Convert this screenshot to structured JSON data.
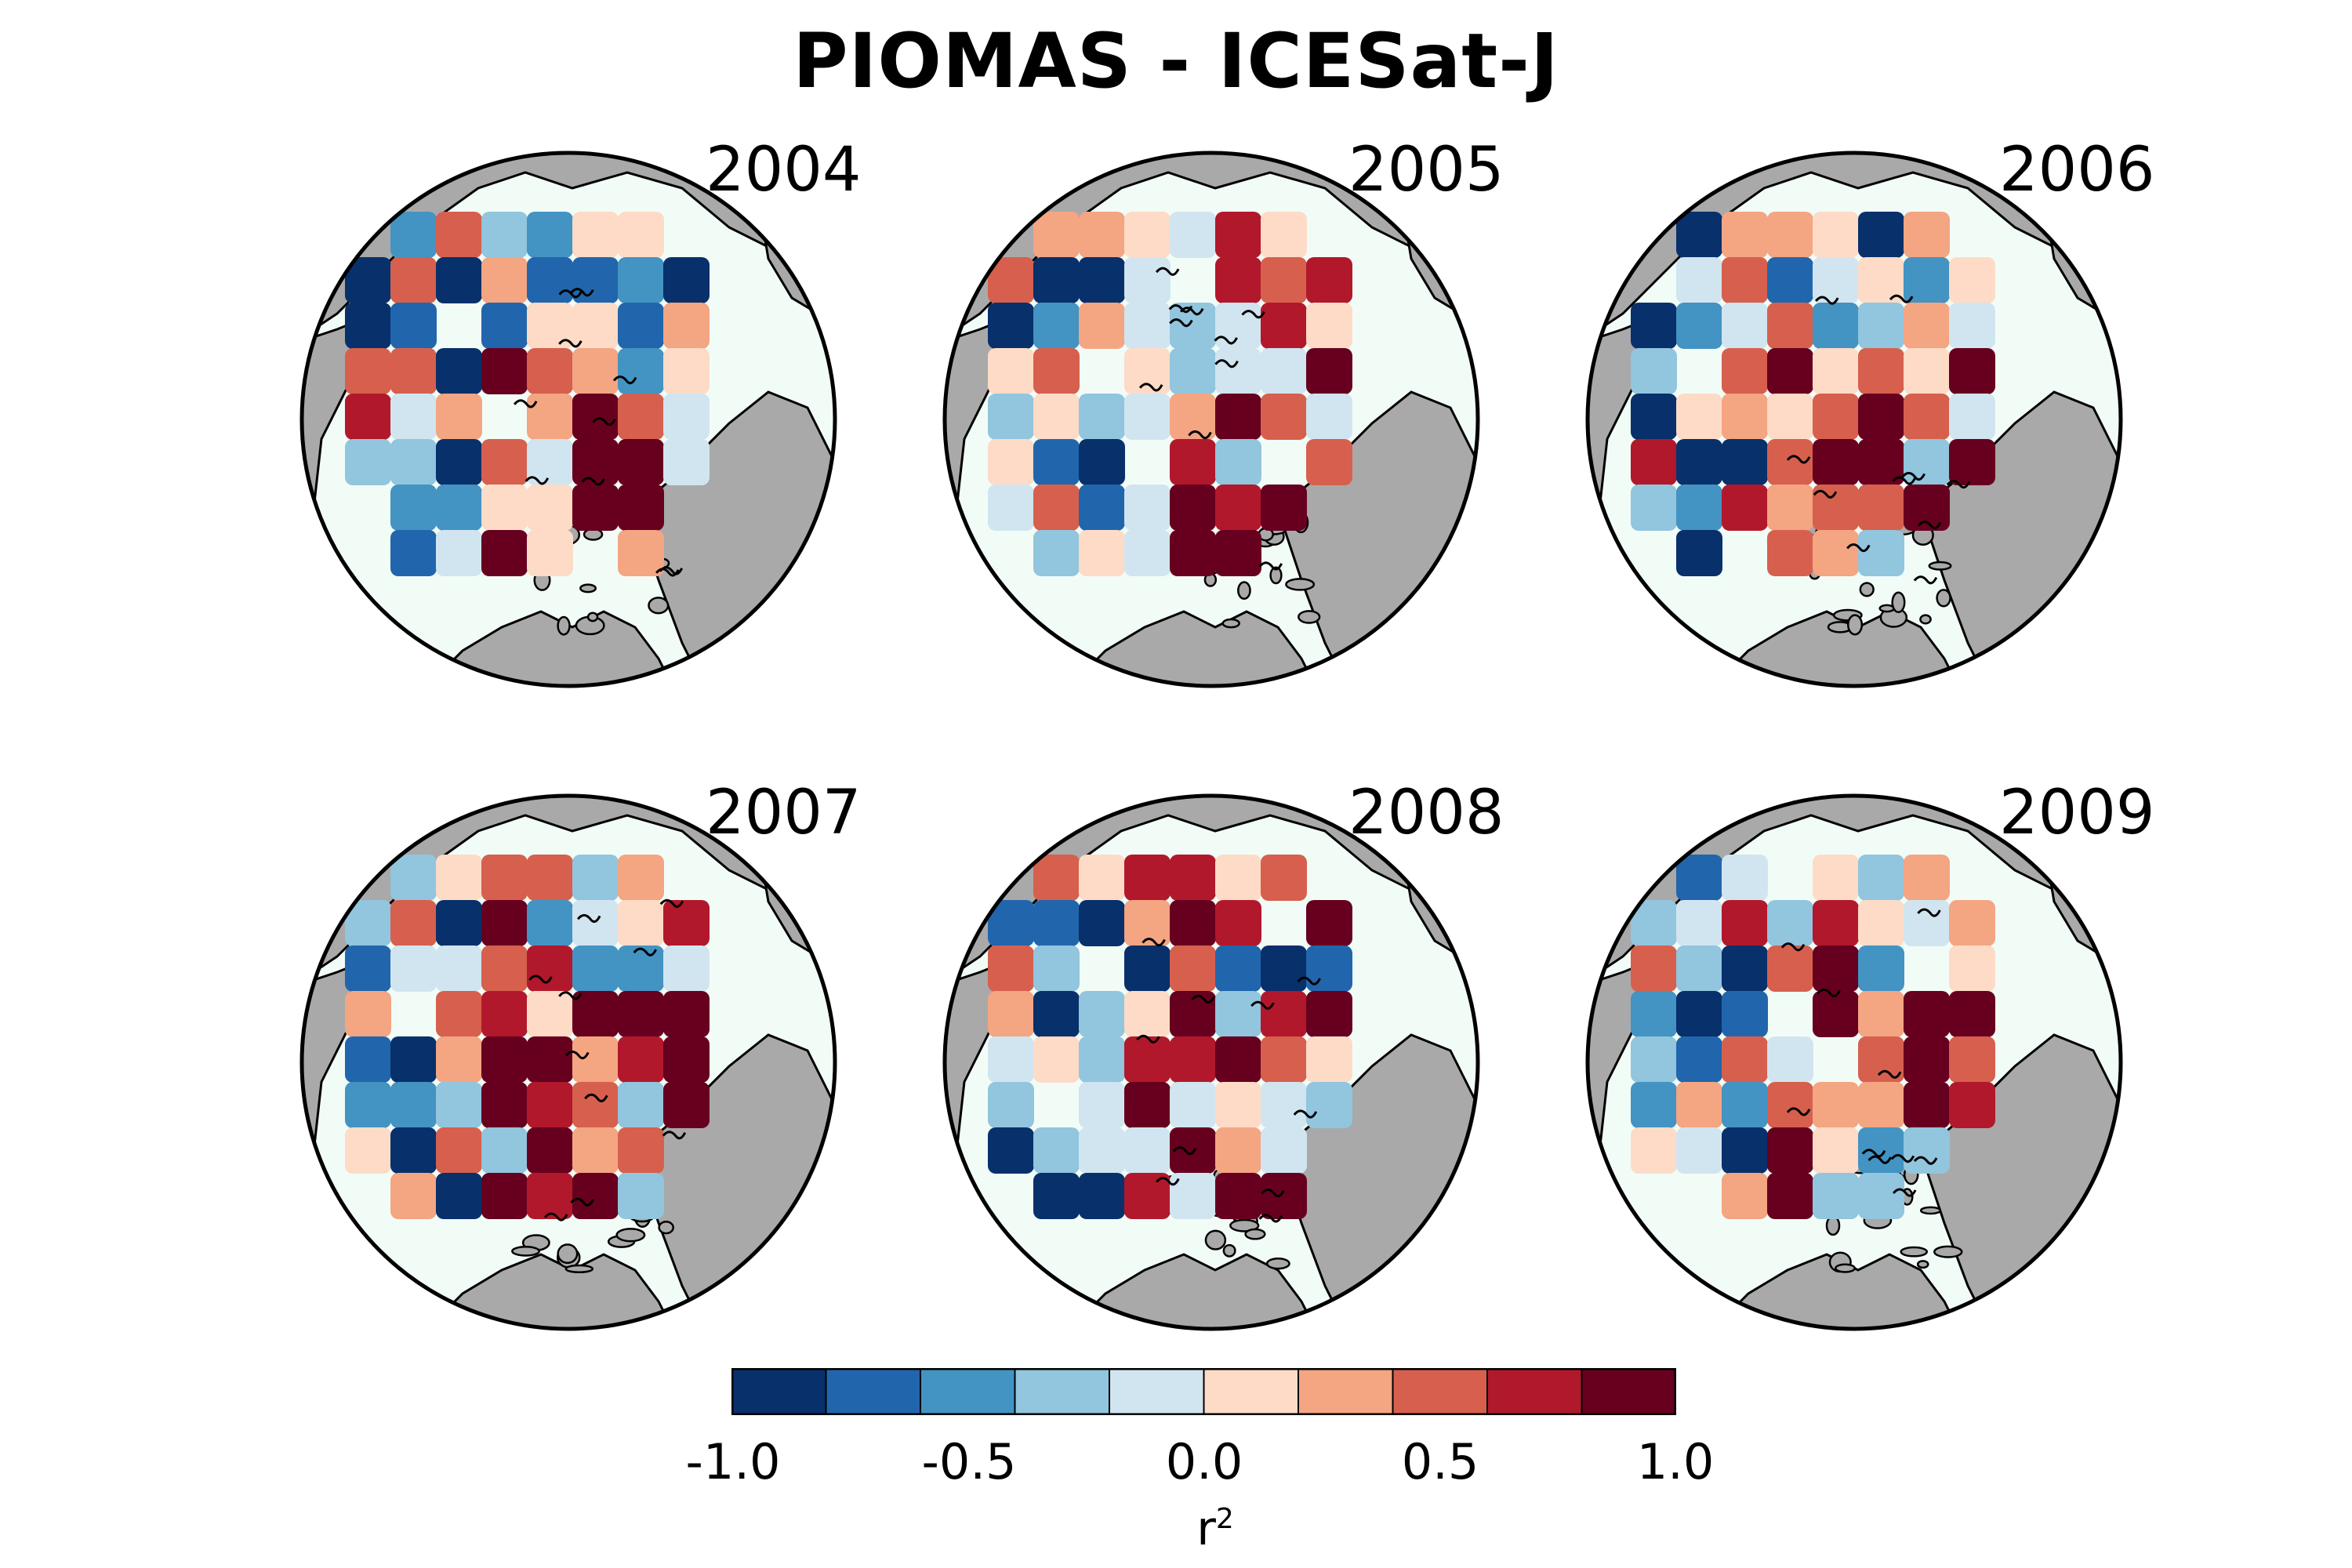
{
  "figure": {
    "title": "PIOMAS - ICESat-J",
    "panels": [
      {
        "year": "2004"
      },
      {
        "year": "2005"
      },
      {
        "year": "2006"
      },
      {
        "year": "2007"
      },
      {
        "year": "2008"
      },
      {
        "year": "2009"
      }
    ]
  },
  "colorbar": {
    "tick_labels": [
      "-1.0",
      "-0.5",
      "0.0",
      "0.5",
      "1.0"
    ],
    "label_base": "r",
    "label_exp": "2",
    "colors": [
      "#08306b",
      "#2166ac",
      "#4393c3",
      "#92c5de",
      "#d1e5f0",
      "#fddbc7",
      "#f4a582",
      "#d6604d",
      "#b2182b",
      "#67001f"
    ]
  },
  "map_colors": {
    "land": "#a9a9a9",
    "ocean": "#f2fcf7",
    "coast": "#000000"
  },
  "chart_data": {
    "type": "heatmap",
    "title": "PIOMAS - ICESat-J",
    "colorbar_label": "r²",
    "colorbar_range": [
      -1.0,
      1.0
    ],
    "colorbar_levels": [
      -1.0,
      -0.8,
      -0.6,
      -0.4,
      -0.2,
      0.0,
      0.2,
      0.4,
      0.6,
      0.8,
      1.0
    ],
    "panels": [
      "2004",
      "2005",
      "2006",
      "2007",
      "2008",
      "2009"
    ]
  }
}
